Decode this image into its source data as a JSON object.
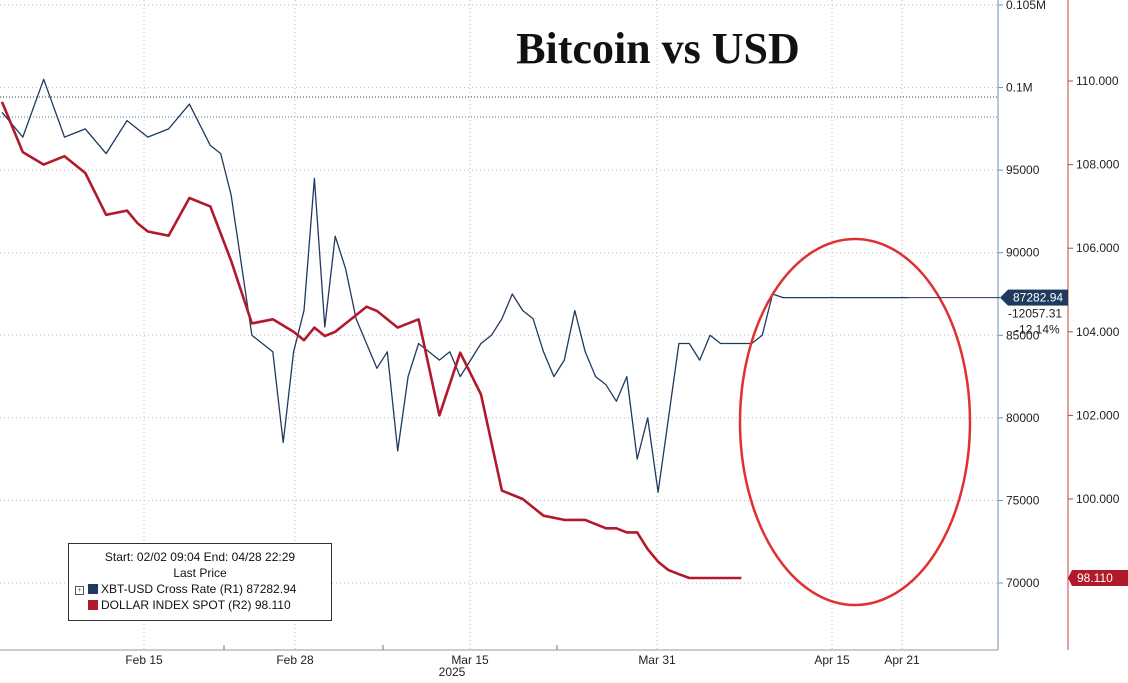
{
  "chart_data": {
    "type": "line",
    "title": "Bitcoin vs USD",
    "x_axis": {
      "labels": [
        "Feb 15",
        "Feb 28",
        "Mar 15",
        "Mar 31",
        "Apr 15",
        "Apr 21"
      ],
      "year_label": "2025"
    },
    "y_axis_right1": {
      "ticks": [
        "0.105M",
        "0.1M",
        "95000",
        "90000",
        "85000",
        "80000",
        "75000",
        "70000"
      ],
      "ylim": [
        65000,
        105000
      ]
    },
    "y_axis_right2": {
      "ticks": [
        "110.000",
        "108.000",
        "106.000",
        "104.000",
        "102.000",
        "100.000"
      ],
      "ylim": [
        96.4,
        112.0
      ]
    },
    "legend": {
      "header": "Start: 02/02 09:04 End: 04/28 22:29",
      "subheader": "Last Price",
      "entries": [
        "XBT-USD Cross Rate  (R1) 87282.94",
        "DOLLAR INDEX SPOT  (R2) 98.110"
      ]
    },
    "series": [
      {
        "name": "XBT-USD Cross Rate",
        "axis": "R1",
        "color": "#1f3a5f",
        "x": [
          0,
          2,
          4,
          6,
          8,
          10,
          12,
          14,
          16,
          18,
          20,
          21,
          22,
          24,
          26,
          27,
          28,
          29,
          30,
          31,
          32,
          33,
          34,
          35,
          36,
          37,
          38,
          39,
          40,
          41,
          42,
          43,
          44,
          45,
          46,
          47,
          48,
          49,
          50,
          51,
          52,
          53,
          54,
          55,
          56,
          57,
          58,
          59,
          60,
          61,
          62,
          63,
          64,
          65,
          66,
          67,
          68,
          69,
          70,
          71,
          72,
          73,
          74,
          75,
          76,
          77,
          78,
          79,
          80,
          81,
          82,
          83,
          84,
          85,
          86,
          87
        ],
        "values": [
          98500,
          97000,
          100500,
          97000,
          97500,
          96000,
          98000,
          97000,
          97500,
          99000,
          96500,
          96000,
          93500,
          85000,
          84000,
          78500,
          84000,
          86500,
          94500,
          85500,
          91000,
          89000,
          86000,
          84500,
          83000,
          84000,
          78000,
          82500,
          84500,
          84000,
          83500,
          84000,
          82500,
          83500,
          84500,
          85000,
          86000,
          87500,
          86500,
          86000,
          84000,
          82500,
          83500,
          86500,
          84000,
          82500,
          82000,
          81000,
          82500,
          77500,
          80000,
          75500,
          80000,
          84500,
          84500,
          83500,
          85000,
          84500,
          84500,
          84500,
          84500,
          85000,
          87500,
          87282.94,
          87282.94,
          87282.94,
          87282.94,
          87282.94,
          87282.94,
          87282.94,
          87282.94,
          87282.94,
          87282.94,
          87282.94,
          87282.94,
          87282.94
        ]
      },
      {
        "name": "DOLLAR INDEX SPOT",
        "axis": "R2",
        "color": "#b11a2b",
        "x": [
          0,
          2,
          4,
          6,
          8,
          10,
          12,
          13,
          14,
          16,
          18,
          20,
          22,
          24,
          26,
          28,
          29,
          30,
          31,
          32,
          33,
          34,
          35,
          36,
          38,
          40,
          42,
          44,
          46,
          48,
          50,
          52,
          54,
          56,
          58,
          59,
          60,
          61,
          62,
          63,
          64,
          65,
          66,
          67,
          68,
          69,
          70,
          71
        ],
        "values": [
          109.5,
          108.3,
          108.0,
          108.2,
          107.8,
          106.8,
          106.9,
          106.6,
          106.4,
          106.3,
          107.2,
          107.0,
          105.7,
          104.2,
          104.3,
          104.0,
          103.8,
          104.1,
          103.9,
          104.0,
          104.2,
          104.4,
          104.6,
          104.5,
          104.1,
          104.3,
          102.0,
          103.5,
          102.5,
          100.2,
          100.0,
          99.6,
          99.5,
          99.5,
          99.3,
          99.3,
          99.2,
          99.2,
          98.8,
          98.5,
          98.3,
          98.2,
          98.11,
          98.11,
          98.11,
          98.11,
          98.11,
          98.11
        ]
      }
    ],
    "last_value_labels": {
      "xbt": [
        "87282.94",
        "-12057.31",
        "-12.14%"
      ],
      "dxy": "98.110"
    }
  }
}
